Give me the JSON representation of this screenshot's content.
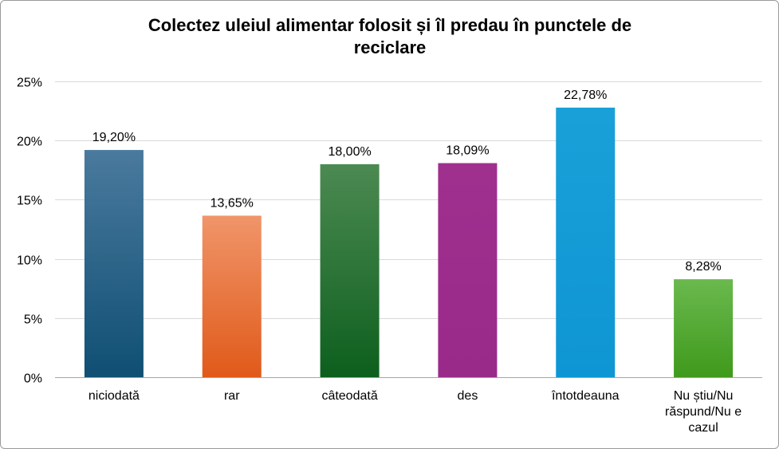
{
  "chart_data": {
    "type": "bar",
    "title": "Colectez uleiul alimentar folosit și îl predau în punctele de reciclare",
    "title_lines": [
      "Colectez uleiul alimentar folosit și îl predau în punctele de",
      "reciclare"
    ],
    "xlabel": "",
    "ylabel": "",
    "ylim": [
      0,
      25
    ],
    "yticks": [
      0,
      5,
      10,
      15,
      20,
      25
    ],
    "ytick_labels": [
      "0%",
      "5%",
      "10%",
      "15%",
      "20%",
      "25%"
    ],
    "grid": true,
    "legend": "none",
    "categories": [
      {
        "label_lines": [
          "niciodată"
        ],
        "value": 19.2,
        "label": "19,20%",
        "color_top": "#4a7a9e",
        "color_bottom": "#0f4f73"
      },
      {
        "label_lines": [
          "rar"
        ],
        "value": 13.65,
        "label": "13,65%",
        "color_top": "#f0956a",
        "color_bottom": "#e05a1a"
      },
      {
        "label_lines": [
          "câteodată"
        ],
        "value": 18.0,
        "label": "18,00%",
        "color_top": "#4c8a52",
        "color_bottom": "#0d5f1e"
      },
      {
        "label_lines": [
          "des"
        ],
        "value": 18.09,
        "label": "18,09%",
        "color_top": "#a0308e",
        "color_bottom": "#9a2a8a"
      },
      {
        "label_lines": [
          "întotdeauna"
        ],
        "value": 22.78,
        "label": "22,78%",
        "color_top": "#1aa0d8",
        "color_bottom": "#0e96d4"
      },
      {
        "label_lines": [
          "Nu știu/Nu",
          "răspund/Nu e",
          "cazul"
        ],
        "value": 8.28,
        "label": "8,28%",
        "color_top": "#6ab94e",
        "color_bottom": "#3f9a1c"
      }
    ]
  }
}
